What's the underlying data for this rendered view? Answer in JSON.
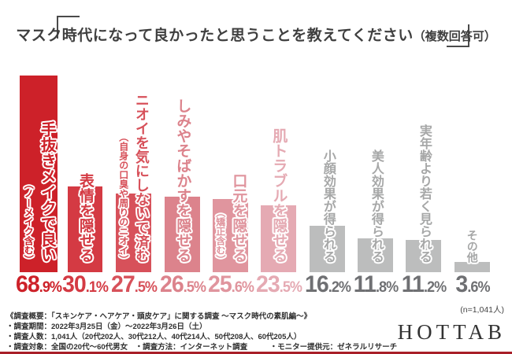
{
  "title": {
    "main": "マスク時代になって良かったと思うことを教えてください",
    "note": "（複数回答可）"
  },
  "chart_data": {
    "type": "bar",
    "title": "マスク時代になって良かったと思うことを教えてください（複数回答可）",
    "unit": "%",
    "ylim": [
      0,
      70
    ],
    "grid": false,
    "categories": [
      "手抜きメイクで良い（ノーメイク含む）",
      "表情を隠せる",
      "ニオイを気にしないで済む（自身の口臭や周りのニオイ）",
      "しみやそばかすを隠せる",
      "口元を隠せる（矯正含む）",
      "肌トラブルを隠せる",
      "小顔効果が得られる",
      "美人効果が得られる",
      "実年齢より若く見られる",
      "その他"
    ],
    "values": [
      68.9,
      30.1,
      27.5,
      26.5,
      25.6,
      23.5,
      16.2,
      11.8,
      11.2,
      3.6
    ],
    "bars": [
      {
        "label": "手抜きメイクで良い",
        "sub": "（ノーメイク含む）",
        "value": 68.9,
        "color": "#cd2129",
        "text_color": "#cd2129",
        "pct_color": "#cd2129"
      },
      {
        "label": "表情を隠せる",
        "sub": "",
        "value": 30.1,
        "color": "#d43a43",
        "text_color": "#d43a43",
        "pct_color": "#d43a43"
      },
      {
        "label": "ニオイを気にしないで済む",
        "sub": "（自身の口臭や周りのニオイ）",
        "value": 27.5,
        "color": "#d7515a",
        "text_color": "#d7515a",
        "pct_color": "#d7515a"
      },
      {
        "label": "しみやそばかすを隠せる",
        "sub": "",
        "value": 26.5,
        "color": "#dc838c",
        "text_color": "#dc838c",
        "pct_color": "#dc838c"
      },
      {
        "label": "口元を隠せる",
        "sub": "（矯正含む）",
        "value": 25.6,
        "color": "#e0959e",
        "text_color": "#e0959e",
        "pct_color": "#e0959e"
      },
      {
        "label": "肌トラブルを隠せる",
        "sub": "",
        "value": 23.5,
        "color": "#e5aab3",
        "text_color": "#e5aab3",
        "pct_color": "#e5aab3"
      },
      {
        "label": "小顔効果が得られる",
        "sub": "",
        "value": 16.2,
        "color": "#bcbdbd",
        "text_color": "#a6a7a7",
        "pct_color": "#6f7073"
      },
      {
        "label": "美人効果が得られる",
        "sub": "",
        "value": 11.8,
        "color": "#bcbdbd",
        "text_color": "#a6a7a7",
        "pct_color": "#6f7073"
      },
      {
        "label": "実年齢より若く見られる",
        "sub": "",
        "value": 11.2,
        "color": "#bcbdbd",
        "text_color": "#a6a7a7",
        "pct_color": "#6f7073"
      },
      {
        "label": "その他",
        "sub": "",
        "value": 3.6,
        "color": "#bcbdbd",
        "text_color": "#a6a7a7",
        "pct_color": "#6f7073"
      }
    ],
    "sample_note": "(n=1,041人)"
  },
  "footer": {
    "lines": [
      "《調査概要：「スキンケア・ヘアケア・頭皮ケア」に関する調査 〜マスク時代の素肌編〜》",
      "・調査期間：2022年3月25日（金）〜2022年3月26日（土）",
      "・調査人数：1,041人（20代202人、30代212人、40代214人、50代208人、60代205人）",
      "・調査対象：全国の20代〜60代男女　・調査方法：インターネット調査　　　・モニター提供元：ゼネラルリサーチ"
    ]
  },
  "brand": {
    "logo": "HOTTAB"
  },
  "colors": {
    "accent_red": "#cd2129",
    "bottom_line": "#a81e28",
    "gray_bar": "#bcbdbd"
  }
}
